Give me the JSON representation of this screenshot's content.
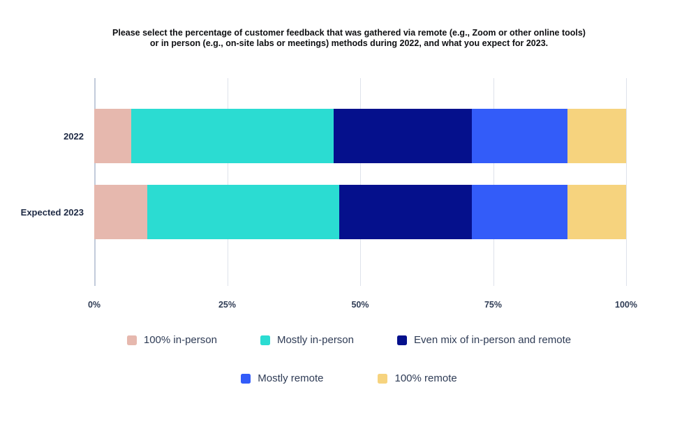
{
  "title": {
    "line1": "Please select the percentage of customer feedback that was gathered via remote (e.g., Zoom or other online tools)",
    "line2": "or in person (e.g., on-site labs or meetings) methods during 2022, and what you expect for 2023."
  },
  "chart_data": {
    "type": "bar",
    "orientation": "horizontal",
    "stacked": true,
    "unit": "%",
    "categories": [
      "2022",
      "Expected 2023"
    ],
    "series": [
      {
        "name": "100% in-person",
        "color": "#E6B8AE",
        "values": [
          7,
          10
        ]
      },
      {
        "name": "Mostly in-person",
        "color": "#2BDCD2",
        "values": [
          38,
          36
        ]
      },
      {
        "name": "Even mix of in-person and remote",
        "color": "#05108C",
        "values": [
          26,
          25
        ]
      },
      {
        "name": "Mostly remote",
        "color": "#335CF9",
        "values": [
          18,
          18
        ]
      },
      {
        "name": "100% remote",
        "color": "#F6D37E",
        "values": [
          11,
          11
        ]
      }
    ],
    "x_ticks": [
      "0%",
      "25%",
      "50%",
      "75%",
      "100%"
    ],
    "xlim": [
      0,
      100
    ],
    "grid": true,
    "legend_position": "bottom"
  },
  "colors": {
    "background": "#FFFFFF",
    "gridline": "#DEE2EB",
    "axis_line": "#C2CBDA",
    "axis_text": "#2F3C55",
    "title_text": "#0E0F12",
    "legend_text": "#2E3B55"
  }
}
